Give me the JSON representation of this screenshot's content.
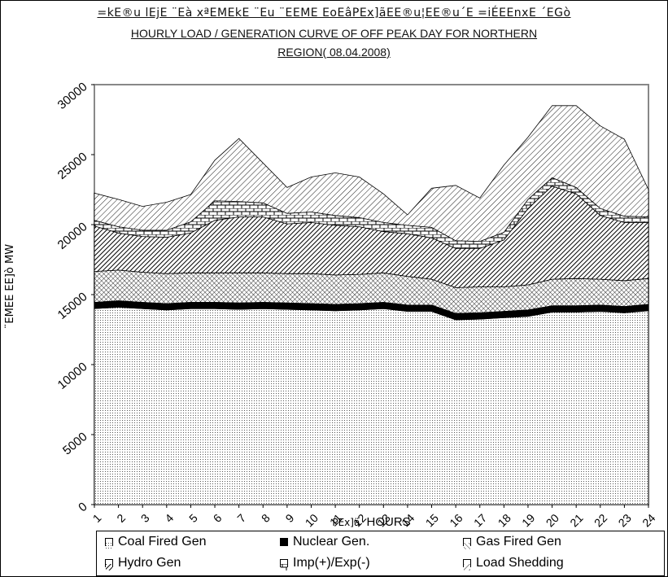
{
  "titles": {
    "hindi": "=kE®u lEjE ¨Eà xªEMEkE ¨Eu ¨EEME EoEâPEx]ãEE®u¦EE®u´E =iÉEEnxE ´EGò",
    "line1": "HOURLY LOAD / GENERATION  CURVE OF OFF PEAK DAY FOR NORTHERN",
    "line2": "REGION( 08.04.2008)"
  },
  "axes": {
    "y_label": "¨EMEE EE]ò MW",
    "x_label_hindi": "PEx]ä",
    "x_label": "HOURS"
  },
  "legend": {
    "items": [
      {
        "label": "Coal Fired Gen",
        "symbol": "⊡"
      },
      {
        "label": "Nuclear  Gen.",
        "symbol": "■"
      },
      {
        "label": "Gas Fired Gen",
        "symbol": "▨"
      },
      {
        "label": "Hydro Gen",
        "symbol": "▨"
      },
      {
        "label": "Imp(+)/Exp(-)",
        "symbol": "⊞"
      },
      {
        "label": "Load Shedding",
        "symbol": "▧"
      }
    ]
  },
  "chart_data": {
    "type": "area",
    "stacked": true,
    "x": [
      1,
      2,
      3,
      4,
      5,
      6,
      7,
      8,
      9,
      10,
      11,
      12,
      13,
      14,
      15,
      16,
      17,
      18,
      19,
      20,
      21,
      22,
      23,
      24
    ],
    "ylim": [
      0,
      30000
    ],
    "y_ticks": [
      0,
      5000,
      10000,
      15000,
      20000,
      25000,
      30000
    ],
    "series": [
      {
        "name": "Coal Fired Gen",
        "values": [
          14000,
          14100,
          14000,
          13900,
          14000,
          14000,
          13950,
          14000,
          13950,
          13900,
          13850,
          13900,
          14000,
          13800,
          13800,
          13200,
          13250,
          13350,
          13450,
          13750,
          13750,
          13800,
          13700,
          13850
        ]
      },
      {
        "name": "Nuclear  Gen.",
        "values": [
          450,
          450,
          450,
          450,
          450,
          450,
          450,
          450,
          450,
          450,
          450,
          450,
          450,
          450,
          450,
          450,
          450,
          450,
          450,
          450,
          450,
          450,
          450,
          450
        ]
      },
      {
        "name": "Gas Fired Gen",
        "values": [
          2200,
          2200,
          2150,
          2150,
          2100,
          2100,
          2150,
          2100,
          2100,
          2150,
          2100,
          2100,
          2100,
          2050,
          1850,
          1850,
          1850,
          1750,
          1800,
          1900,
          1950,
          1850,
          1850,
          1850
        ]
      },
      {
        "name": "Hydro Gen",
        "values": [
          3250,
          2650,
          2550,
          2600,
          2850,
          3750,
          4000,
          4000,
          3550,
          3650,
          3550,
          3400,
          2950,
          3050,
          2950,
          2800,
          2750,
          3350,
          5450,
          6650,
          6050,
          4550,
          4150,
          4000
        ]
      },
      {
        "name": "Imp(+)/Exp(-)",
        "values": [
          400,
          450,
          450,
          500,
          800,
          1400,
          1100,
          1000,
          750,
          750,
          700,
          650,
          650,
          600,
          750,
          550,
          500,
          550,
          650,
          600,
          450,
          500,
          450,
          400
        ]
      },
      {
        "name": "Load Shedding",
        "values": [
          1950,
          1950,
          1700,
          2000,
          1950,
          2900,
          4500,
          2850,
          1850,
          2500,
          3050,
          2900,
          2050,
          750,
          2800,
          3950,
          3100,
          4800,
          4450,
          5150,
          5850,
          5900,
          5500,
          1950
        ]
      }
    ],
    "colors": {
      "fill": "#ffffff",
      "pattern": "#000000",
      "plot_border": "#888888"
    }
  }
}
